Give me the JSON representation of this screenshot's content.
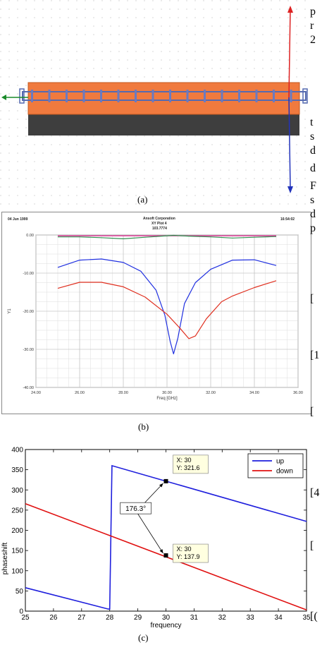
{
  "panel_a": {
    "caption": "(a)"
  },
  "panel_b": {
    "caption": "(b)",
    "header": {
      "date": "04 Jun 1999",
      "company": "Ansoft Corporation",
      "plot_name": "XY Plot 4",
      "project": "103.7774",
      "time": "16:54:02"
    },
    "chart_data": {
      "type": "line",
      "xlabel": "Freq [GHz]",
      "ylabel": "Y1",
      "xlim": [
        24.0,
        36.0
      ],
      "ylim": [
        -40.0,
        0.0
      ],
      "x_ticks": [
        "24.00",
        "26.00",
        "28.00",
        "30.00",
        "32.00",
        "34.00",
        "36.00"
      ],
      "y_ticks": [
        "0.00",
        "-10.00",
        "-20.00",
        "-30.00",
        "-40.00"
      ],
      "grid": true,
      "series": [
        {
          "color": "#e0208e",
          "x": [
            25,
            26,
            27,
            28,
            29,
            30,
            31,
            32,
            33,
            34,
            35
          ],
          "y": [
            -0.2,
            -0.2,
            -0.2,
            -0.2,
            -0.2,
            -0.2,
            -0.2,
            -0.2,
            -0.2,
            -0.2,
            -0.2
          ]
        },
        {
          "color": "#2f8f4f",
          "x": [
            25,
            26,
            27,
            28,
            29,
            30,
            30.3,
            31,
            32,
            33,
            34,
            35
          ],
          "y": [
            -0.5,
            -0.5,
            -0.7,
            -1.0,
            -0.6,
            -0.2,
            -0.1,
            -0.3,
            -0.5,
            -0.8,
            -0.6,
            -0.4
          ]
        },
        {
          "color": "#2030e0",
          "x": [
            25,
            26,
            27,
            28,
            28.8,
            29.5,
            29.9,
            30.15,
            30.3,
            30.5,
            30.8,
            31.3,
            32,
            33,
            34,
            35
          ],
          "y": [
            -8.5,
            -6.6,
            -6.3,
            -7.2,
            -9.5,
            -14.5,
            -21,
            -28,
            -31.2,
            -27,
            -18,
            -12.5,
            -9,
            -6.6,
            -6.5,
            -8.0
          ]
        },
        {
          "color": "#e03020",
          "x": [
            25,
            26,
            27,
            28,
            29,
            30,
            30.6,
            31.0,
            31.3,
            31.8,
            32.5,
            33,
            34,
            35
          ],
          "y": [
            -14.0,
            -12.4,
            -12.4,
            -13.6,
            -16.3,
            -20.8,
            -24.5,
            -27.2,
            -26.5,
            -22,
            -17.5,
            -16.0,
            -13.8,
            -12.0
          ]
        }
      ]
    }
  },
  "panel_c": {
    "caption": "(c)",
    "chart_data": {
      "type": "line",
      "xlabel": "frequency",
      "ylabel": "phaseshift",
      "xlim": [
        25,
        35
      ],
      "ylim": [
        0,
        400
      ],
      "x_ticks": [
        25,
        26,
        27,
        28,
        29,
        30,
        31,
        32,
        33,
        34,
        35
      ],
      "y_ticks": [
        0,
        50,
        100,
        150,
        200,
        250,
        300,
        350,
        400
      ],
      "legend": "top-right",
      "series": [
        {
          "name": "up",
          "color": "#1f1fdd",
          "x": [
            25,
            27.95,
            28.0,
            28.08,
            35
          ],
          "y": [
            58,
            5,
            5,
            360,
            222
          ]
        },
        {
          "name": "down",
          "color": "#e01010",
          "x": [
            25,
            35
          ],
          "y": [
            266,
            3
          ]
        }
      ],
      "datatips": [
        {
          "x_text": "X: 30",
          "y_text": "Y: 321.6",
          "x": 30,
          "y": 321.6
        },
        {
          "x_text": "X: 30",
          "y_text": "Y: 137.9",
          "x": 30,
          "y": 137.9
        }
      ],
      "annotation": {
        "text": "176.3°",
        "x": 28.5,
        "y": 253
      }
    }
  },
  "side_text": [
    "p",
    "r",
    "2",
    "t",
    "s",
    "d",
    "d",
    "F",
    "s",
    "d",
    "p",
    "[",
    "[1",
    "[",
    "[4",
    "[",
    "[("
  ]
}
